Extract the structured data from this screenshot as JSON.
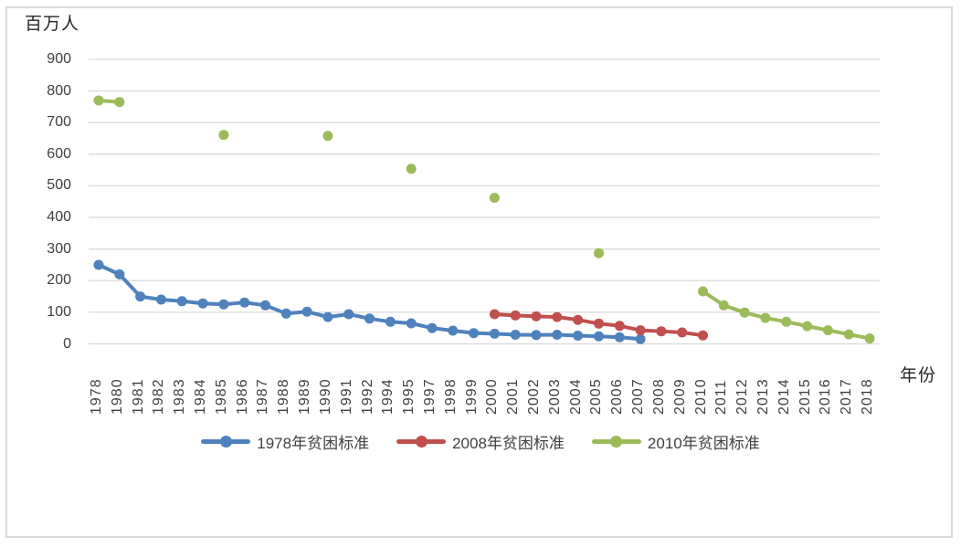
{
  "chart_data": {
    "type": "line",
    "y_axis": {
      "label": "百万人",
      "min": 0,
      "max": 900,
      "ticks": [
        900,
        800,
        700,
        600,
        500,
        400,
        300,
        200,
        100,
        0
      ],
      "grid": true,
      "gridline_color": "#d9d9d9"
    },
    "x_axis": {
      "label": "年份",
      "categories": [
        "1978",
        "1980",
        "1981",
        "1982",
        "1983",
        "1984",
        "1985",
        "1986",
        "1987",
        "1988",
        "1989",
        "1990",
        "1991",
        "1992",
        "1994",
        "1995",
        "1997",
        "1998",
        "1999",
        "2000",
        "2001",
        "2002",
        "2003",
        "2004",
        "2005",
        "2006",
        "2007",
        "2008",
        "2009",
        "2010",
        "2011",
        "2012",
        "2013",
        "2014",
        "2015",
        "2016",
        "2017",
        "2018"
      ]
    },
    "series": [
      {
        "name": "1978年贫困标准",
        "color": "#4f81bd",
        "values": [
          250,
          220,
          150,
          140,
          135,
          128,
          125,
          131,
          122,
          96,
          102,
          85,
          94,
          80,
          70,
          65,
          50,
          42,
          34,
          32,
          29,
          28,
          29,
          26,
          24,
          21,
          15,
          null,
          null,
          null,
          null,
          null,
          null,
          null,
          null,
          null,
          null,
          null
        ]
      },
      {
        "name": "2008年贫困标准",
        "color": "#c0504d",
        "values": [
          null,
          null,
          null,
          null,
          null,
          null,
          null,
          null,
          null,
          null,
          null,
          null,
          null,
          null,
          null,
          null,
          null,
          null,
          null,
          94,
          90,
          87,
          85,
          76,
          64,
          57,
          43,
          40,
          36,
          27,
          null,
          null,
          null,
          null,
          null,
          null,
          null,
          null
        ]
      },
      {
        "name": "2010年贫困标准",
        "color": "#9bbb59",
        "values": [
          770,
          765,
          null,
          null,
          null,
          null,
          661,
          null,
          null,
          null,
          null,
          658,
          null,
          null,
          null,
          554,
          null,
          null,
          null,
          462,
          null,
          null,
          null,
          null,
          287,
          null,
          null,
          null,
          null,
          166,
          122,
          99,
          82,
          70,
          56,
          43,
          30,
          17
        ]
      }
    ],
    "legend": {
      "position": "bottom"
    }
  }
}
